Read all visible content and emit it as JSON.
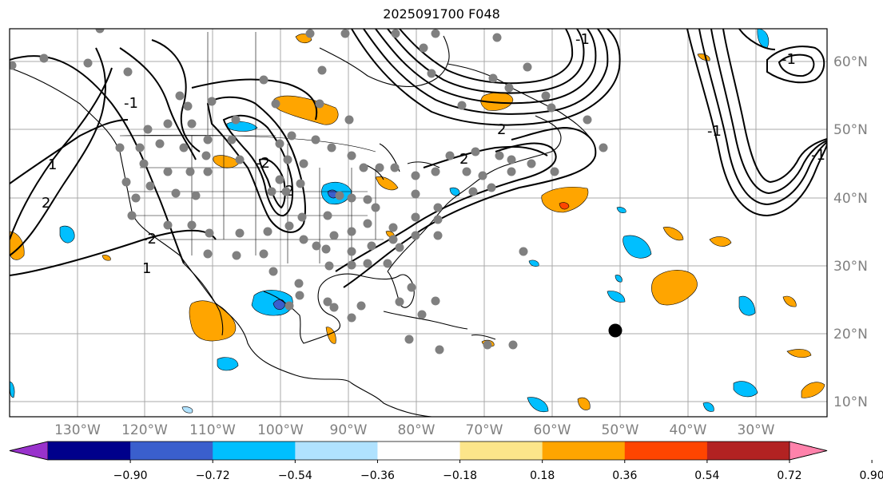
{
  "title": "2025091700 F048",
  "map": {
    "lat_labels": [
      "10°N",
      "20°N",
      "30°N",
      "40°N",
      "50°N",
      "60°N"
    ],
    "lon_labels": [
      "130°W",
      "120°W",
      "110°W",
      "100°W",
      "90°W",
      "80°W",
      "70°W",
      "60°W",
      "50°W",
      "40°W",
      "30°W"
    ],
    "contour_labels": [
      "1",
      "1",
      "2",
      "2",
      "-2",
      "-2",
      "-2",
      "-1",
      "-1",
      "2",
      "-1",
      "-1",
      "-1"
    ],
    "station_color": "#808080",
    "marker_color": "#000000"
  },
  "colorbar": {
    "colors": [
      "#9932cc",
      "#00008b",
      "#3a5fcd",
      "#00bfff",
      "#b0e2ff",
      "#ffffff",
      "#fce58a",
      "#ffa500",
      "#ff4500",
      "#b22222",
      "#ff82ab"
    ],
    "ticks": [
      "−0.90",
      "−0.72",
      "−0.54",
      "−0.36",
      "−0.18",
      "0.18",
      "0.36",
      "0.54",
      "0.72",
      "0.90"
    ]
  }
}
